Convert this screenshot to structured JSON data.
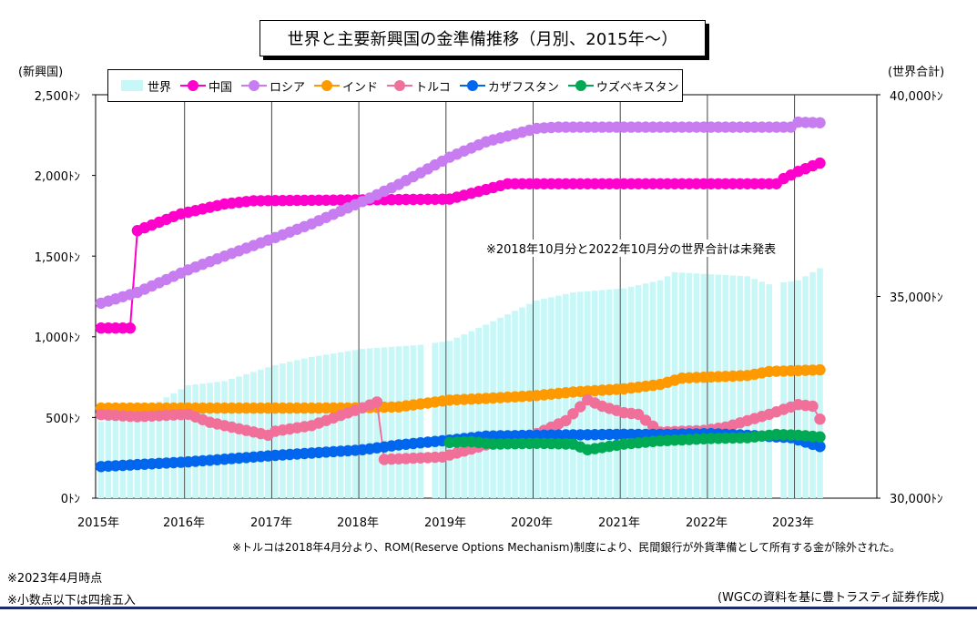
{
  "title": "世界と主要新興国の金準備推移（月別、2015年～）",
  "left_axis_title": "(新興国)",
  "right_axis_title": "(世界合計)",
  "left_ticks": [
    "2,500ﾄﾝ",
    "2,000ﾄﾝ",
    "1,500ﾄﾝ",
    "1,000ﾄﾝ",
    "500ﾄﾝ",
    "0ﾄﾝ"
  ],
  "right_ticks": [
    "40,000ﾄﾝ",
    "35,000ﾄﾝ",
    "30,000ﾄﾝ"
  ],
  "x_ticks": [
    "2015年",
    "2016年",
    "2017年",
    "2018年",
    "2019年",
    "2020年",
    "2021年",
    "2022年",
    "2023年"
  ],
  "note_world": "※2018年10月分と2022年10月分の世界合計は未発表",
  "note_turkey": "※トルコは2018年4月分より、ROM(Reserve Options Mechanism)制度により、民間銀行が外貨準備として所有する金が除外された。",
  "note_date": "※2023年4月時点",
  "note_round": "※小数点以下は四捨五入",
  "note_source": "(WGCの資料を基に豊トラスティ証券作成)",
  "legend": [
    {
      "label": "世界",
      "color": "#c8f7f7",
      "kind": "bar"
    },
    {
      "label": "中国",
      "color": "#ff00cc",
      "kind": "line"
    },
    {
      "label": "ロシア",
      "color": "#c77df0",
      "kind": "line"
    },
    {
      "label": "インド",
      "color": "#ff9900",
      "kind": "line"
    },
    {
      "label": "トルコ",
      "color": "#f0709a",
      "kind": "line"
    },
    {
      "label": "カザフスタン",
      "color": "#0066ee",
      "kind": "line"
    },
    {
      "label": "ウズベキスタン",
      "color": "#00aa55",
      "kind": "line"
    }
  ],
  "chart_data": {
    "type": "bar+line",
    "x_start": "2015-01",
    "x_end": "2023-04",
    "y_left_range": [
      0,
      2500
    ],
    "y_right_range": [
      30000,
      40000
    ],
    "missing_world_months": [
      "2018-10",
      "2022-10"
    ],
    "world_keypoints": [
      [
        "2015-01",
        31900
      ],
      [
        "2015-06",
        32100
      ],
      [
        "2016-01",
        32800
      ],
      [
        "2016-06",
        32900
      ],
      [
        "2017-01",
        33300
      ],
      [
        "2017-06",
        33500
      ],
      [
        "2018-01",
        33700
      ],
      [
        "2018-09",
        33800
      ],
      [
        "2019-01",
        33900
      ],
      [
        "2019-06",
        34300
      ],
      [
        "2020-01",
        34900
      ],
      [
        "2020-06",
        35100
      ],
      [
        "2021-01",
        35200
      ],
      [
        "2021-06",
        35400
      ],
      [
        "2021-08",
        35600
      ],
      [
        "2022-06",
        35500
      ],
      [
        "2022-09",
        35300
      ],
      [
        "2023-01",
        35400
      ],
      [
        "2023-04",
        35700
      ]
    ],
    "series": [
      {
        "name": "中国",
        "keypoints": [
          [
            "2015-01",
            1054
          ],
          [
            "2015-05",
            1054
          ],
          [
            "2015-06",
            1658
          ],
          [
            "2015-12",
            1762
          ],
          [
            "2016-06",
            1823
          ],
          [
            "2016-10",
            1843
          ],
          [
            "2019-01",
            1853
          ],
          [
            "2019-09",
            1948
          ],
          [
            "2022-10",
            1948
          ],
          [
            "2022-11",
            1980
          ],
          [
            "2023-01",
            2025
          ],
          [
            "2023-04",
            2076
          ]
        ]
      },
      {
        "name": "ロシア",
        "keypoints": [
          [
            "2015-01",
            1208
          ],
          [
            "2015-06",
            1275
          ],
          [
            "2016-01",
            1415
          ],
          [
            "2016-06",
            1500
          ],
          [
            "2017-01",
            1615
          ],
          [
            "2017-06",
            1700
          ],
          [
            "2018-01",
            1838
          ],
          [
            "2018-06",
            1944
          ],
          [
            "2019-01",
            2113
          ],
          [
            "2019-06",
            2208
          ],
          [
            "2020-01",
            2292
          ],
          [
            "2020-04",
            2299
          ],
          [
            "2022-12",
            2299
          ],
          [
            "2023-01",
            2330
          ],
          [
            "2023-04",
            2326
          ]
        ]
      },
      {
        "name": "インド",
        "keypoints": [
          [
            "2015-01",
            558
          ],
          [
            "2017-06",
            558
          ],
          [
            "2018-01",
            560
          ],
          [
            "2018-06",
            566
          ],
          [
            "2019-01",
            608
          ],
          [
            "2019-06",
            618
          ],
          [
            "2020-01",
            636
          ],
          [
            "2020-06",
            658
          ],
          [
            "2021-01",
            677
          ],
          [
            "2021-06",
            705
          ],
          [
            "2021-09",
            744
          ],
          [
            "2022-06",
            760
          ],
          [
            "2022-09",
            785
          ],
          [
            "2023-04",
            795
          ]
        ]
      },
      {
        "name": "トルコ",
        "keypoints": [
          [
            "2015-01",
            518
          ],
          [
            "2015-06",
            505
          ],
          [
            "2016-01",
            520
          ],
          [
            "2016-04",
            470
          ],
          [
            "2016-12",
            390
          ],
          [
            "2017-01",
            415
          ],
          [
            "2017-06",
            450
          ],
          [
            "2018-01",
            560
          ],
          [
            "2018-03",
            596
          ],
          [
            "2018-04",
            240
          ],
          [
            "2018-12",
            255
          ],
          [
            "2019-06",
            330
          ],
          [
            "2020-01",
            400
          ],
          [
            "2020-05",
            480
          ],
          [
            "2020-08",
            610
          ],
          [
            "2020-10",
            570
          ],
          [
            "2021-01",
            530
          ],
          [
            "2021-03",
            520
          ],
          [
            "2021-06",
            410
          ],
          [
            "2021-12",
            420
          ],
          [
            "2022-03",
            440
          ],
          [
            "2022-06",
            480
          ],
          [
            "2022-09",
            520
          ],
          [
            "2023-01",
            580
          ],
          [
            "2023-03",
            570
          ],
          [
            "2023-04",
            490
          ]
        ]
      },
      {
        "name": "カザフスタン",
        "keypoints": [
          [
            "2015-01",
            196
          ],
          [
            "2016-01",
            225
          ],
          [
            "2017-01",
            265
          ],
          [
            "2018-01",
            300
          ],
          [
            "2018-06",
            330
          ],
          [
            "2019-01",
            360
          ],
          [
            "2019-06",
            385
          ],
          [
            "2020-01",
            390
          ],
          [
            "2021-01",
            396
          ],
          [
            "2021-06",
            395
          ],
          [
            "2022-01",
            400
          ],
          [
            "2022-06",
            390
          ],
          [
            "2022-12",
            375
          ],
          [
            "2023-04",
            320
          ]
        ]
      },
      {
        "name": "ウズベキスタン",
        "start": "2019-01",
        "keypoints": [
          [
            "2019-01",
            345
          ],
          [
            "2019-04",
            350
          ],
          [
            "2019-07",
            335
          ],
          [
            "2020-01",
            340
          ],
          [
            "2020-06",
            335
          ],
          [
            "2020-08",
            300
          ],
          [
            "2021-01",
            335
          ],
          [
            "2021-06",
            355
          ],
          [
            "2022-01",
            370
          ],
          [
            "2022-06",
            375
          ],
          [
            "2022-10",
            395
          ],
          [
            "2023-01",
            390
          ],
          [
            "2023-04",
            380
          ]
        ]
      }
    ]
  }
}
